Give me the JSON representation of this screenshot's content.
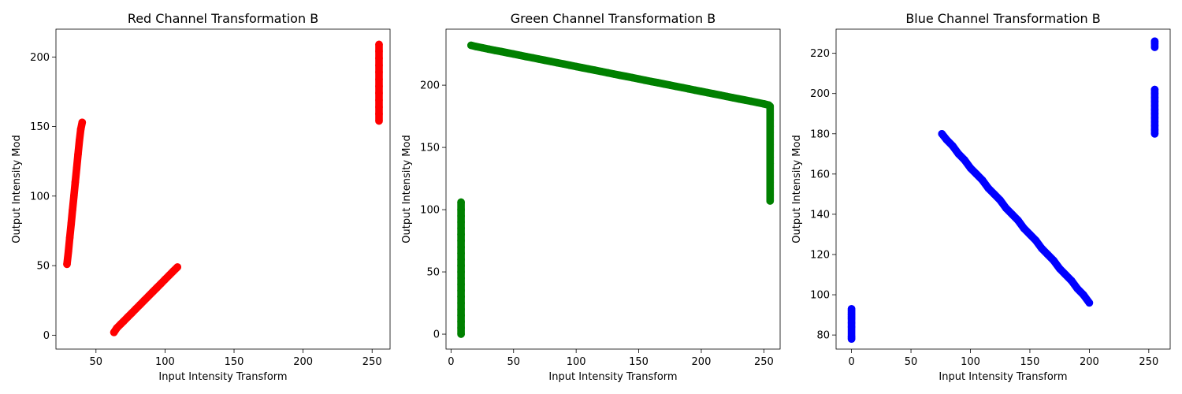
{
  "chart_data": [
    {
      "type": "scatter",
      "title": "Red Channel Transformation B",
      "xlabel": "Input Intensity Transform",
      "ylabel": "Output Intensity Mod",
      "xlim": [
        21,
        263
      ],
      "ylim": [
        -10,
        220
      ],
      "xticks": [
        50,
        100,
        150,
        200,
        250
      ],
      "yticks": [
        0,
        50,
        100,
        150,
        200
      ],
      "color": "#ff0000",
      "series": [
        {
          "x": [
            29,
            30,
            31,
            32,
            33,
            34,
            35,
            36,
            37,
            38,
            39,
            40
          ],
          "y": [
            51,
            60,
            70,
            80,
            90,
            100,
            110,
            120,
            130,
            140,
            148,
            153
          ]
        },
        {
          "x": [
            63,
            65,
            68,
            70,
            73,
            76,
            79,
            82,
            85,
            88,
            91,
            94,
            97,
            100,
            103,
            106,
            109
          ],
          "y": [
            2,
            5,
            8,
            10,
            13,
            16,
            19,
            22,
            25,
            28,
            31,
            34,
            37,
            40,
            43,
            46,
            49
          ]
        },
        {
          "x": [
            255,
            255,
            255,
            255,
            255,
            255,
            255,
            255,
            255,
            255,
            255,
            255
          ],
          "y": [
            154,
            159,
            164,
            169,
            174,
            179,
            184,
            189,
            194,
            199,
            204,
            209
          ]
        }
      ]
    },
    {
      "type": "scatter",
      "title": "Green Channel Transformation B",
      "xlabel": "Input Intensity Transform",
      "ylabel": "Output Intensity Mod",
      "xlim": [
        -4,
        263
      ],
      "ylim": [
        -12,
        245
      ],
      "xticks": [
        0,
        50,
        100,
        150,
        200,
        250
      ],
      "yticks": [
        0,
        50,
        100,
        150,
        200
      ],
      "color": "#008000",
      "series": [
        {
          "x": [
            8,
            8,
            8,
            8,
            8,
            8,
            8,
            8,
            8,
            8,
            8,
            8,
            8,
            8,
            8,
            8,
            8,
            8,
            8,
            8,
            8,
            8
          ],
          "y": [
            0,
            5,
            10,
            15,
            20,
            25,
            30,
            35,
            40,
            45,
            50,
            55,
            60,
            65,
            70,
            75,
            80,
            85,
            90,
            95,
            100,
            106
          ]
        },
        {
          "x": [
            16,
            20,
            25,
            30,
            35,
            40,
            45,
            50,
            55,
            60,
            65,
            70,
            75,
            80,
            85,
            90,
            95,
            100,
            105,
            110,
            115,
            120,
            125,
            130,
            135,
            140,
            145,
            150,
            155,
            160,
            165,
            170,
            175,
            180,
            185,
            190,
            195,
            200,
            205,
            210,
            215,
            220,
            225,
            230,
            235,
            240,
            245,
            250,
            254
          ],
          "y": [
            232,
            231,
            230,
            229,
            228,
            227,
            226,
            225,
            224,
            223,
            222,
            221,
            220,
            219,
            218,
            217,
            216,
            215,
            214,
            213,
            212,
            211,
            210,
            209,
            208,
            207,
            206,
            205,
            204,
            203,
            202,
            201,
            200,
            199,
            198,
            197,
            196,
            195,
            194,
            193,
            192,
            191,
            190,
            189,
            188,
            187,
            186,
            185,
            184
          ]
        },
        {
          "x": [
            255,
            255,
            255,
            255,
            255,
            255,
            255,
            255,
            255,
            255,
            255,
            255,
            255,
            255,
            255,
            255
          ],
          "y": [
            107,
            112,
            117,
            122,
            127,
            132,
            137,
            142,
            147,
            152,
            157,
            162,
            167,
            172,
            177,
            183
          ]
        }
      ]
    },
    {
      "type": "scatter",
      "title": "Blue Channel Transformation B",
      "xlabel": "Input Intensity Transform",
      "ylabel": "Output Intensity Mod",
      "xlim": [
        -13,
        268
      ],
      "ylim": [
        73,
        232
      ],
      "xticks": [
        0,
        50,
        100,
        150,
        200,
        250
      ],
      "yticks": [
        80,
        100,
        120,
        140,
        160,
        180,
        200,
        220
      ],
      "color": "#0000ff",
      "series": [
        {
          "x": [
            0,
            0,
            0,
            0,
            0,
            0,
            0,
            0,
            0,
            0
          ],
          "y": [
            78,
            79,
            84,
            86,
            88,
            89,
            90,
            91,
            92,
            93
          ]
        },
        {
          "x": [
            76,
            80,
            85,
            90,
            95,
            100,
            105,
            110,
            115,
            120,
            125,
            130,
            135,
            140,
            145,
            150,
            155,
            160,
            165,
            170,
            175,
            180,
            185,
            190,
            195,
            200
          ],
          "y": [
            180,
            177,
            174,
            170,
            167,
            163,
            160,
            157,
            153,
            150,
            147,
            143,
            140,
            137,
            133,
            130,
            127,
            123,
            120,
            117,
            113,
            110,
            107,
            103,
            100,
            96
          ]
        },
        {
          "x": [
            255,
            255,
            255,
            255,
            255,
            255,
            255,
            255,
            255,
            255,
            255,
            255
          ],
          "y": [
            180,
            182,
            184,
            186,
            188,
            190,
            192,
            194,
            196,
            198,
            200,
            202
          ]
        },
        {
          "x": [
            255,
            255,
            255
          ],
          "y": [
            223,
            225,
            226
          ]
        }
      ]
    }
  ]
}
